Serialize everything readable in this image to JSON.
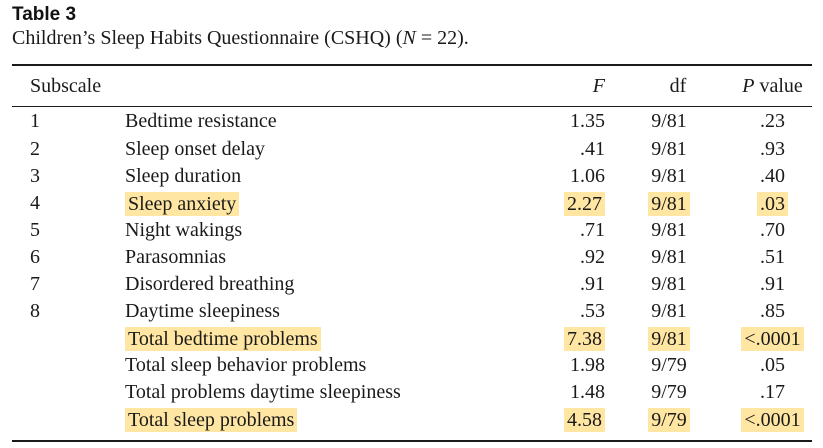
{
  "table_label": "Table 3",
  "caption": {
    "prefix": "Children’s Sleep Habits Questionnaire (CSHQ) (",
    "n_symbol": "N",
    "suffix": " = 22)."
  },
  "headers": {
    "subscale": "Subscale",
    "f": "F",
    "df": "df",
    "p_symbol": "P",
    "p_rest": " value"
  },
  "rows": [
    {
      "num": "1",
      "name": "Bedtime resistance",
      "f": "1.35",
      "df": "9/81",
      "p": ".23",
      "highlight": {
        "name": false,
        "f": false,
        "df": false,
        "p": false
      }
    },
    {
      "num": "2",
      "name": "Sleep onset delay",
      "f": ".41",
      "df": "9/81",
      "p": ".93",
      "highlight": {
        "name": false,
        "f": false,
        "df": false,
        "p": false
      }
    },
    {
      "num": "3",
      "name": "Sleep duration",
      "f": "1.06",
      "df": "9/81",
      "p": ".40",
      "highlight": {
        "name": false,
        "f": false,
        "df": false,
        "p": false
      }
    },
    {
      "num": "4",
      "name": "Sleep anxiety",
      "f": "2.27",
      "df": "9/81",
      "p": ".03",
      "highlight": {
        "name": true,
        "f": true,
        "df": true,
        "p": true
      }
    },
    {
      "num": "5",
      "name": "Night wakings",
      "f": ".71",
      "df": "9/81",
      "p": ".70",
      "highlight": {
        "name": false,
        "f": false,
        "df": false,
        "p": false
      }
    },
    {
      "num": "6",
      "name": "Parasomnias",
      "f": ".92",
      "df": "9/81",
      "p": ".51",
      "highlight": {
        "name": false,
        "f": false,
        "df": false,
        "p": false
      }
    },
    {
      "num": "7",
      "name": "Disordered breathing",
      "f": ".91",
      "df": "9/81",
      "p": ".91",
      "highlight": {
        "name": false,
        "f": false,
        "df": false,
        "p": false
      }
    },
    {
      "num": "8",
      "name": "Daytime sleepiness",
      "f": ".53",
      "df": "9/81",
      "p": ".85",
      "highlight": {
        "name": false,
        "f": false,
        "df": false,
        "p": false
      }
    },
    {
      "num": "",
      "name": "Total bedtime problems",
      "f": "7.38",
      "df": "9/81",
      "p": "<.0001",
      "highlight": {
        "name": true,
        "f": true,
        "df": true,
        "p": true
      }
    },
    {
      "num": "",
      "name": "Total sleep behavior problems",
      "f": "1.98",
      "df": "9/79",
      "p": ".05",
      "highlight": {
        "name": false,
        "f": false,
        "df": false,
        "p": false
      }
    },
    {
      "num": "",
      "name": "Total problems daytime sleepiness",
      "f": "1.48",
      "df": "9/79",
      "p": ".17",
      "highlight": {
        "name": false,
        "f": false,
        "df": false,
        "p": false
      }
    },
    {
      "num": "",
      "name": "Total sleep problems",
      "f": "4.58",
      "df": "9/79",
      "p": "<.0001",
      "highlight": {
        "name": true,
        "f": true,
        "df": true,
        "p": true
      }
    }
  ],
  "colors": {
    "highlight": "#ffe6a2",
    "text": "#1a1a1a"
  }
}
